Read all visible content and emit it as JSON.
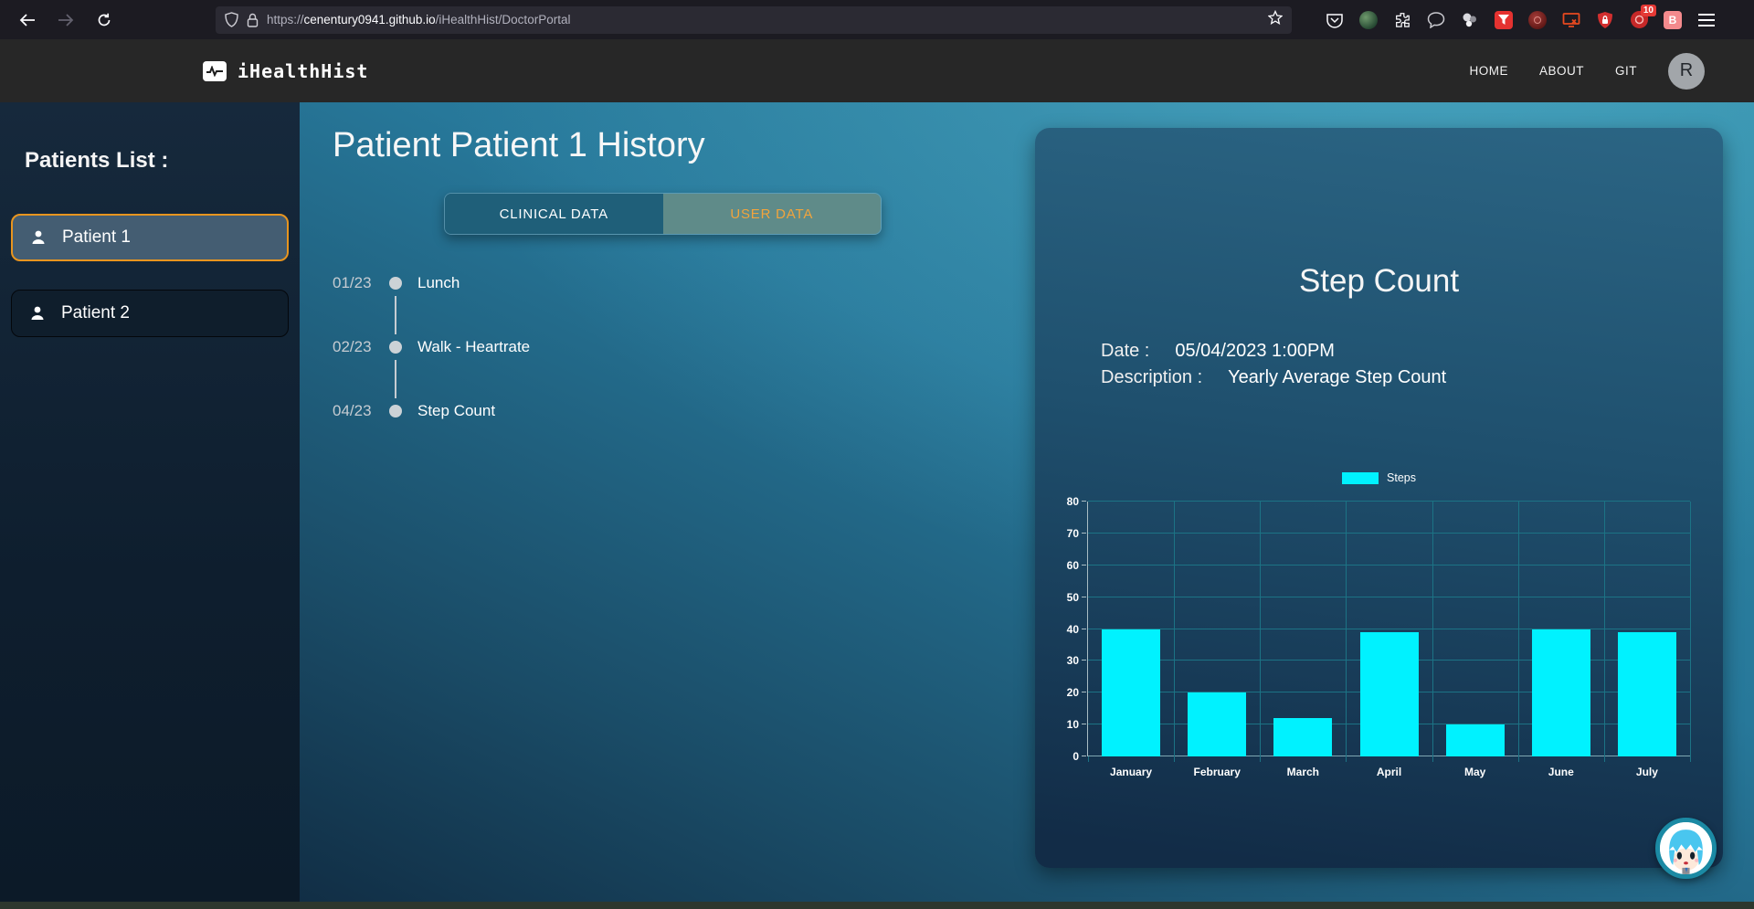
{
  "browser": {
    "url": {
      "scheme": "https://",
      "domain": "cenentury0941.github.io",
      "path": "/iHealthHist/DoctorPortal"
    },
    "ghostery_badge": "10",
    "bitwarden_label": "B"
  },
  "navbar": {
    "brand": "iHealthHist",
    "links": [
      {
        "label": "HOME"
      },
      {
        "label": "ABOUT"
      },
      {
        "label": "GIT"
      }
    ],
    "avatar_initial": "R"
  },
  "sidebar": {
    "heading": "Patients List :",
    "patients": [
      {
        "name": "Patient 1",
        "selected": true
      },
      {
        "name": "Patient 2",
        "selected": false
      }
    ]
  },
  "main": {
    "title": "Patient Patient 1 History",
    "tabs": [
      {
        "label": "CLINICAL DATA",
        "active": false
      },
      {
        "label": "USER DATA",
        "active": true
      }
    ],
    "timeline": [
      {
        "date": "01/23",
        "label": "Lunch"
      },
      {
        "date": "02/23",
        "label": "Walk - Heartrate"
      },
      {
        "date": "04/23",
        "label": "Step Count"
      }
    ]
  },
  "detail_card": {
    "title": "Step Count",
    "date_label": "Date :",
    "date_value": "05/04/2023 1:00PM",
    "description_label": "Description :",
    "description_value": "Yearly Average Step Count"
  },
  "chart_data": {
    "type": "bar",
    "title": "Step Count",
    "categories": [
      "January",
      "February",
      "March",
      "April",
      "May",
      "June",
      "July"
    ],
    "series": [
      {
        "name": "Steps",
        "color": "#00f2ff",
        "values": [
          40,
          20,
          12,
          39,
          10,
          40,
          39
        ]
      }
    ],
    "xlabel": "",
    "ylabel": "",
    "ylim": [
      0,
      80
    ],
    "ytick_step": 10,
    "grid": true,
    "legend_position": "top",
    "gridline_color": "#1c7385"
  },
  "colors": {
    "accent_orange": "#f2a43c",
    "selected_border_orange": "#e8951f",
    "bar_cyan": "#00f2ff",
    "grid_teal": "#1c7385"
  }
}
